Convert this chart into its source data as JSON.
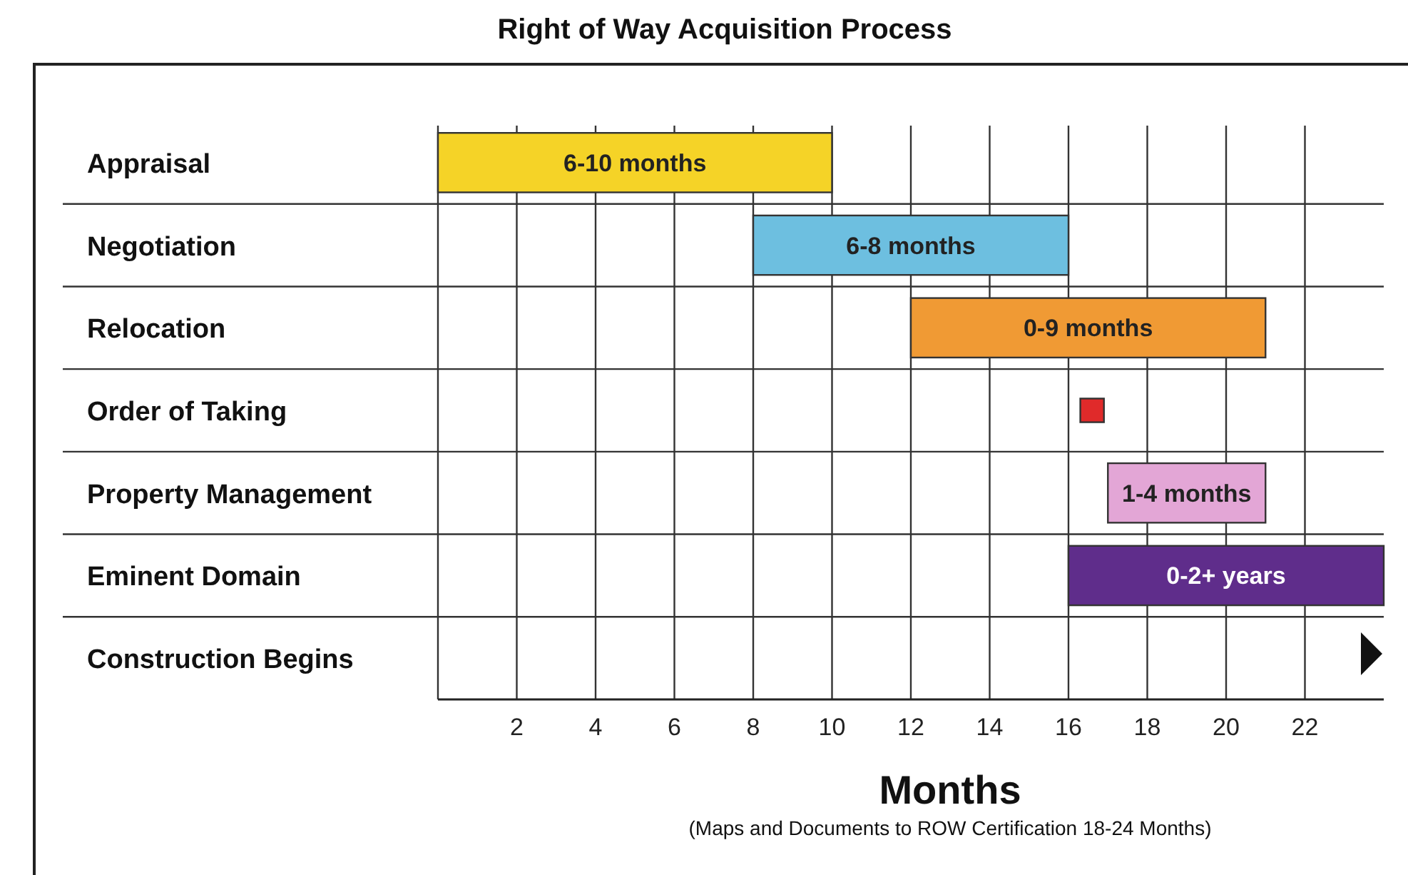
{
  "chart_data": {
    "type": "bar",
    "orientation": "horizontal",
    "title": "Right of Way Acquisition Process",
    "xlabel": "Months",
    "annotations": [
      "(Maps and Documents to ROW Certification 18-24 Months)"
    ],
    "categories": [
      "Appraisal",
      "Negotiation",
      "Relocation",
      "Order of Taking",
      "Property Management",
      "Eminent Domain",
      "Construction Begins"
    ],
    "base": [
      0,
      8,
      12,
      16.3,
      17,
      16,
      null
    ],
    "values": [
      10,
      8,
      9,
      0.6,
      4,
      8,
      null
    ],
    "colors": [
      "#f5d327",
      "#6dbfe0",
      "#f09a34",
      "#e02a2a",
      "#e3a6d6",
      "#5f2d8b",
      null
    ],
    "value_labels": [
      "6-10 months",
      "6-8 months",
      "0-9 months",
      null,
      "1-4 months",
      "0-2+ years",
      null
    ],
    "xlim": [
      0,
      24
    ],
    "xticks": [
      2,
      4,
      6,
      8,
      10,
      12,
      14,
      16,
      18,
      20,
      22
    ],
    "grid": "x"
  }
}
